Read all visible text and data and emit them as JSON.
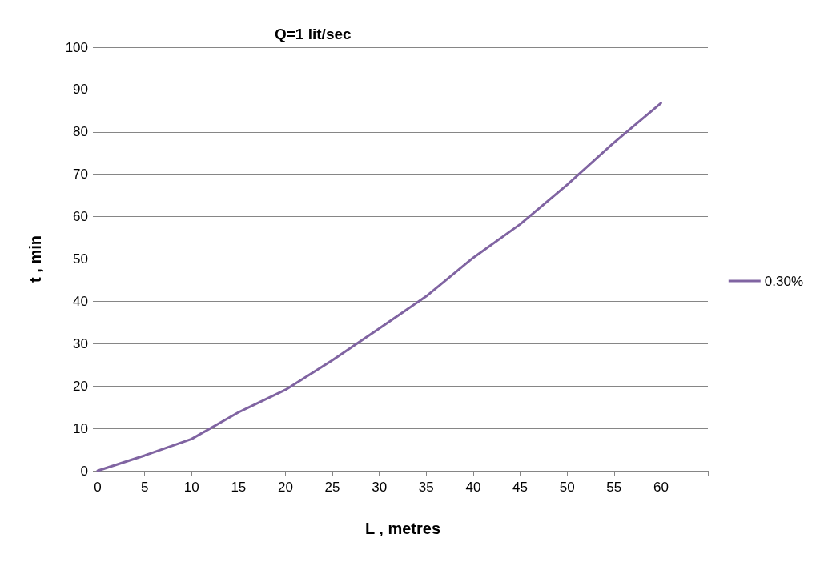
{
  "chart_data": {
    "type": "line",
    "title": "Q=1 lit/sec",
    "xlabel": "L , metres",
    "ylabel": "t , min",
    "x": [
      0,
      5,
      10,
      15,
      20,
      25,
      30,
      35,
      40,
      45,
      50,
      55,
      60
    ],
    "series": [
      {
        "name": "0.30%",
        "color": "#8064a2",
        "values": [
          0,
          3.6,
          7.5,
          13.8,
          19.1,
          26.1,
          33.6,
          41.2,
          50.3,
          58.2,
          67.5,
          77.5,
          86.8
        ]
      }
    ],
    "xlim": [
      0,
      65
    ],
    "xticks": [
      0,
      5,
      10,
      15,
      20,
      25,
      30,
      35,
      40,
      45,
      50,
      55,
      60,
      {
        "value": 65,
        "label": null
      }
    ],
    "ylim": [
      0,
      100
    ],
    "yticks": [
      0,
      10,
      20,
      30,
      40,
      50,
      60,
      70,
      80,
      90,
      100
    ],
    "grid": "y",
    "legend": "right",
    "marker": "none",
    "line_style": "solid"
  }
}
